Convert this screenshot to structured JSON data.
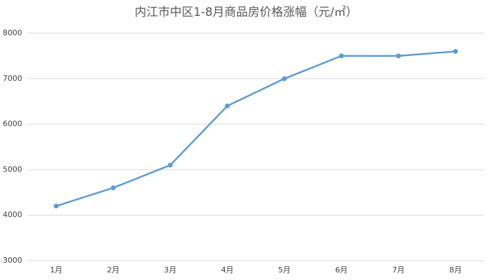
{
  "chart_data": {
    "type": "line",
    "title": "内江市中区1-8月商品房价格涨幅（元/㎡）",
    "categories": [
      "1月",
      "2月",
      "3月",
      "4月",
      "5月",
      "6月",
      "7月",
      "8月"
    ],
    "values": [
      4200,
      4600,
      5100,
      6400,
      7000,
      7500,
      7500,
      7600
    ],
    "color": "#5b9bd5",
    "ylim": [
      3000,
      8000
    ],
    "yticks": [
      3000,
      4000,
      5000,
      6000,
      7000,
      8000
    ],
    "grid": true
  }
}
